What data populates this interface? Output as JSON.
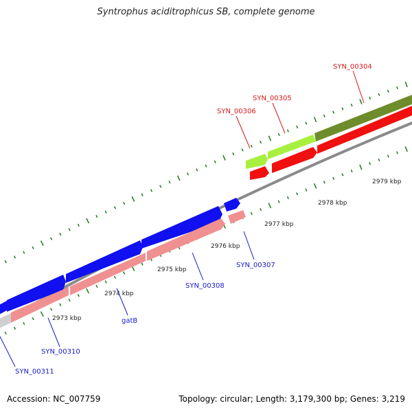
{
  "title": "Syntrophus aciditrophicus SB, complete genome",
  "footer": {
    "accession": "Accession: NC_007759",
    "summary": "Topology: circular; Length: 3,179,300 bp; Genes: 3,219"
  },
  "colors": {
    "cds_forward_blue": "#1010f0",
    "cds_reverse_pink": "#f09090",
    "cds_reverse_red": "#f01010",
    "cds_forward_lime": "#a8f040",
    "cds_forward_olive": "#6e8c2a",
    "backbone_gray": "#8a8a8a",
    "tick_green": "#1a7a1a",
    "label_red": "#d81818",
    "label_blue": "#1818c8"
  },
  "kbp_labels": [
    "2973 kbp",
    "2974 kbp",
    "2975 kbp",
    "2976 kbp",
    "2977 kbp",
    "2978 kbp",
    "2979 kbp"
  ],
  "gene_labels": [
    "SYN_00304",
    "SYN_00305",
    "SYN_00306",
    "SYN_00307",
    "SYN_00308",
    "gatB",
    "SYN_00310",
    "SYN_00311"
  ]
}
